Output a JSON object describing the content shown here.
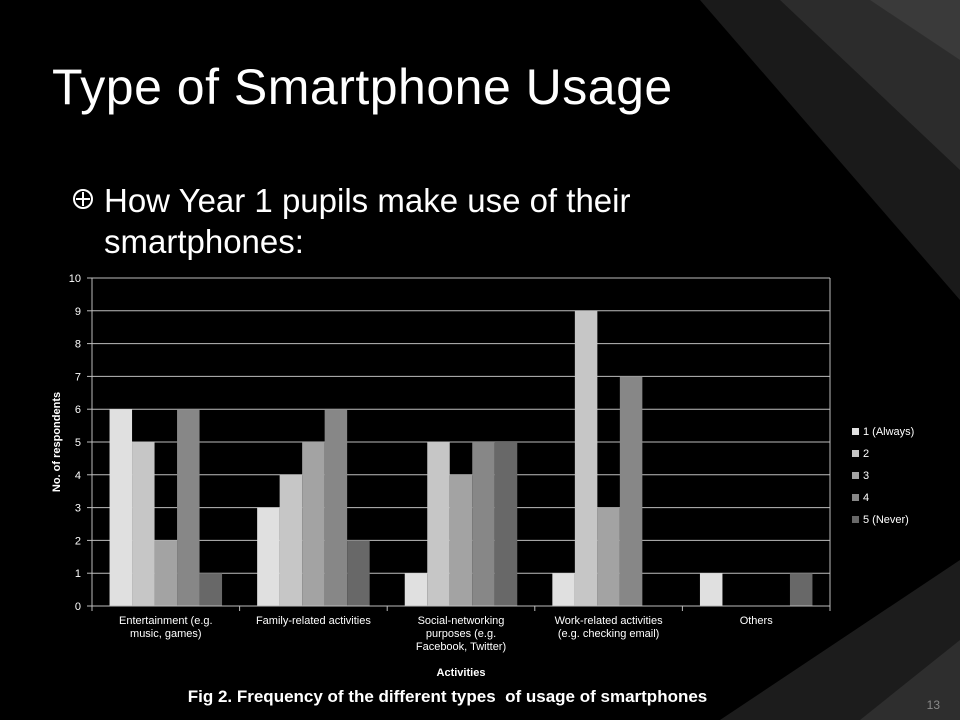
{
  "slide": {
    "title": "Type of Smartphone Usage",
    "bullet": "How Year 1 pupils make use of their smartphones:",
    "caption": "Fig 2. Frequency of the different types  of usage of smartphones",
    "slide_number": "13",
    "bullet_icon": "circle-cross-icon"
  },
  "colors": {
    "background": "#000000",
    "text": "#ffffff",
    "series": [
      "#e0e0e0",
      "#c6c6c6",
      "#a3a3a3",
      "#878787",
      "#686868"
    ]
  },
  "chart_data": {
    "type": "bar",
    "categories": [
      [
        "Entertainment (e.g.",
        "music, games)"
      ],
      [
        "Family-related activities"
      ],
      [
        "Social-networking",
        "purposes (e.g.",
        "Facebook, Twitter)"
      ],
      [
        "Work-related activities",
        "(e.g. checking email)"
      ],
      [
        "Others"
      ]
    ],
    "series": [
      {
        "name": "1 (Always)",
        "values": [
          6,
          3,
          1,
          1,
          1
        ]
      },
      {
        "name": "2",
        "values": [
          5,
          4,
          5,
          9,
          0
        ]
      },
      {
        "name": "3",
        "values": [
          2,
          5,
          4,
          3,
          0
        ]
      },
      {
        "name": "4",
        "values": [
          6,
          6,
          5,
          7,
          0
        ]
      },
      {
        "name": "5 (Never)",
        "values": [
          1,
          2,
          5,
          0,
          1
        ]
      }
    ],
    "ylim": [
      0,
      10
    ],
    "yticks": [
      "0",
      "1",
      "2",
      "3",
      "4",
      "5",
      "6",
      "7",
      "8",
      "9",
      "10"
    ],
    "xlabel": "Activities",
    "ylabel": "No. of respondents",
    "grid": true,
    "legend_position": "right"
  }
}
